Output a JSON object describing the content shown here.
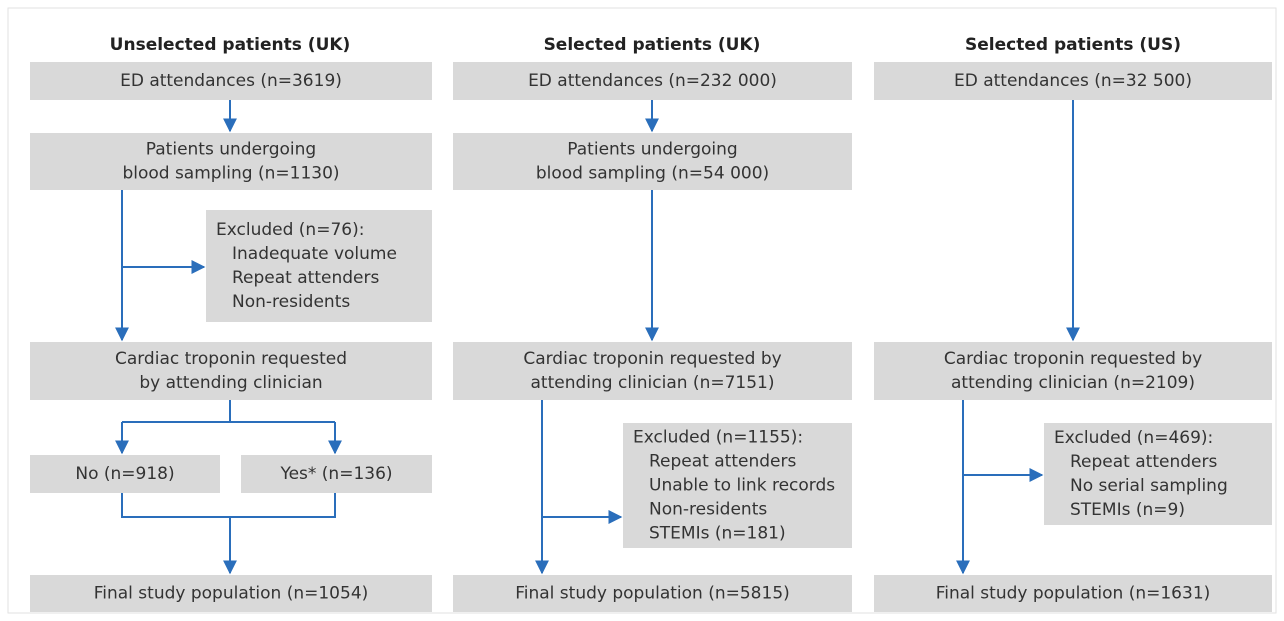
{
  "columns": [
    {
      "title": "Unselected patients (UK)",
      "boxes": [
        {
          "lines": [
            "ED attendances (n=3619)"
          ]
        },
        {
          "lines": [
            "Patients undergoing",
            "blood sampling (n=1130)"
          ]
        },
        {
          "lines": [
            "Excluded (n=76):",
            "Inadequate volume",
            "Repeat attenders",
            "Non-residents"
          ]
        },
        {
          "lines": [
            "Cardiac troponin requested",
            "by attending clinician"
          ]
        },
        {
          "lines": [
            "No (n=918)"
          ]
        },
        {
          "lines": [
            "Yes* (n=136)"
          ]
        },
        {
          "lines": [
            "Final study population (n=1054)"
          ]
        }
      ]
    },
    {
      "title": "Selected patients (UK)",
      "boxes": [
        {
          "lines": [
            "ED attendances (n=232 000)"
          ]
        },
        {
          "lines": [
            "Patients undergoing",
            "blood sampling (n=54 000)"
          ]
        },
        {
          "lines": [
            "Cardiac troponin requested by",
            "attending clinician (n=7151)"
          ]
        },
        {
          "lines": [
            "Excluded (n=1155):",
            "Repeat attenders",
            "Unable to link records",
            "Non-residents",
            "STEMIs (n=181)"
          ]
        },
        {
          "lines": [
            "Final study population (n=5815)"
          ]
        }
      ]
    },
    {
      "title": "Selected patients (US)",
      "boxes": [
        {
          "lines": [
            "ED attendances (n=32 500)"
          ]
        },
        {
          "lines": [
            "Cardiac troponin requested by",
            "attending clinician (n=2109)"
          ]
        },
        {
          "lines": [
            "Excluded (n=469):",
            "Repeat attenders",
            "No serial sampling",
            "STEMIs (n=9)"
          ]
        },
        {
          "lines": [
            "Final study population (n=1631)"
          ]
        }
      ]
    }
  ]
}
